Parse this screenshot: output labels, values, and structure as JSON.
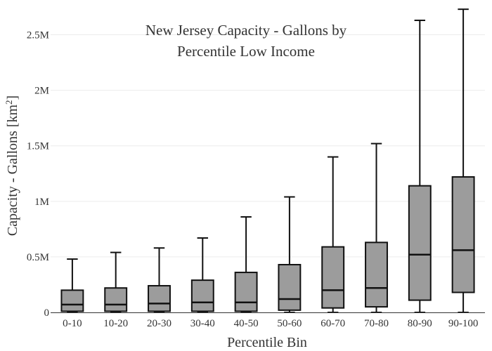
{
  "chart_data": {
    "type": "box",
    "title_lines": [
      "New Jersey Capacity - Gallons by",
      "Percentile Low Income"
    ],
    "xlabel": "Percentile Bin",
    "ylabel_prefix": "Capacity - Gallons  [km",
    "ylabel_sup": "2",
    "ylabel_suffix": "]",
    "ylim": [
      0,
      2.75
    ],
    "y_unit": "million gallons",
    "y_ticks": [
      {
        "value": 0,
        "label": "0"
      },
      {
        "value": 0.5,
        "label": "0.5M"
      },
      {
        "value": 1,
        "label": "1M"
      },
      {
        "value": 1.5,
        "label": "1.5M"
      },
      {
        "value": 2,
        "label": "2M"
      },
      {
        "value": 2.5,
        "label": "2.5M"
      }
    ],
    "grid": true,
    "legend": "none",
    "categories": [
      "0-10",
      "10-20",
      "20-30",
      "30-40",
      "40-50",
      "50-60",
      "60-70",
      "70-80",
      "80-90",
      "90-100"
    ],
    "boxes": [
      {
        "min": 0,
        "q1": 0.01,
        "median": 0.07,
        "q3": 0.2,
        "max": 0.48
      },
      {
        "min": 0,
        "q1": 0.01,
        "median": 0.07,
        "q3": 0.22,
        "max": 0.54
      },
      {
        "min": 0,
        "q1": 0.01,
        "median": 0.08,
        "q3": 0.24,
        "max": 0.58
      },
      {
        "min": 0,
        "q1": 0.01,
        "median": 0.09,
        "q3": 0.29,
        "max": 0.67
      },
      {
        "min": 0,
        "q1": 0.01,
        "median": 0.09,
        "q3": 0.36,
        "max": 0.86
      },
      {
        "min": 0,
        "q1": 0.02,
        "median": 0.12,
        "q3": 0.43,
        "max": 1.04
      },
      {
        "min": 0,
        "q1": 0.04,
        "median": 0.2,
        "q3": 0.59,
        "max": 1.4
      },
      {
        "min": 0,
        "q1": 0.05,
        "median": 0.22,
        "q3": 0.63,
        "max": 1.52
      },
      {
        "min": 0,
        "q1": 0.11,
        "median": 0.52,
        "q3": 1.14,
        "max": 2.63
      },
      {
        "min": 0,
        "q1": 0.18,
        "median": 0.56,
        "q3": 1.22,
        "max": 2.73
      }
    ],
    "colors": {
      "box_fill": "#9c9c9c",
      "box_line": "#111111"
    }
  }
}
